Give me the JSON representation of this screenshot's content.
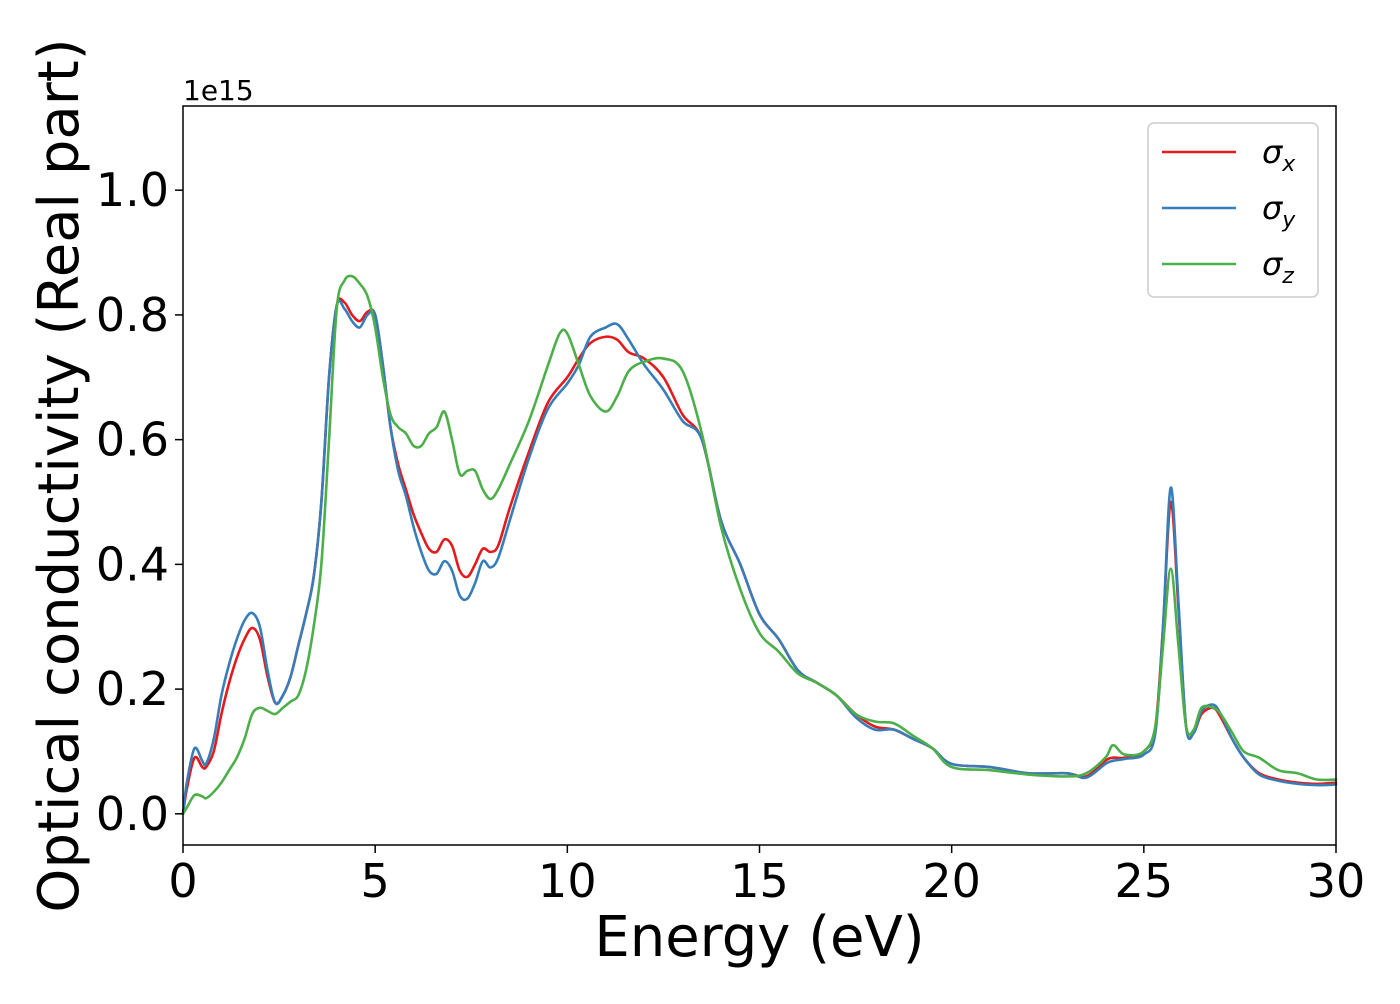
{
  "chart_data": {
    "type": "line",
    "xlabel": "Energy (eV)",
    "ylabel": "Optical conductivity (Real part)",
    "offset_text": "1e15",
    "xlim": [
      0,
      30
    ],
    "ylim": [
      -0.05,
      1.135
    ],
    "xticks": [
      0,
      5,
      10,
      15,
      20,
      25,
      30
    ],
    "xtick_labels": [
      "0",
      "5",
      "10",
      "15",
      "20",
      "25",
      "30"
    ],
    "yticks": [
      0.0,
      0.2,
      0.4,
      0.6,
      0.8,
      1.0
    ],
    "ytick_labels": [
      "0.0",
      "0.2",
      "0.4",
      "0.6",
      "0.8",
      "1.0"
    ],
    "grid": false,
    "legend_position": "top-right",
    "series": [
      {
        "name": "σx",
        "legend_base": "σ",
        "legend_sub": "x",
        "color": "#e41a1c",
        "x": [
          0,
          0.1,
          0.3,
          0.5,
          0.6,
          0.8,
          1.0,
          1.2,
          1.4,
          1.6,
          1.8,
          2.0,
          2.2,
          2.4,
          2.6,
          2.8,
          3.0,
          3.2,
          3.4,
          3.6,
          3.8,
          4.0,
          4.2,
          4.4,
          4.6,
          4.8,
          5.0,
          5.2,
          5.4,
          5.6,
          5.8,
          6.0,
          6.2,
          6.4,
          6.6,
          6.8,
          7.0,
          7.2,
          7.4,
          7.6,
          7.8,
          8.0,
          8.2,
          8.5,
          9.0,
          9.5,
          10.0,
          10.3,
          10.6,
          11.0,
          11.3,
          11.6,
          12.0,
          12.5,
          13.0,
          13.5,
          14.0,
          14.5,
          15.0,
          15.5,
          16.0,
          16.5,
          17.0,
          17.5,
          18.0,
          18.5,
          19.0,
          19.5,
          20.0,
          21.0,
          22.0,
          23.0,
          23.5,
          24.0,
          24.2,
          24.5,
          25.0,
          25.3,
          25.5,
          25.7,
          25.9,
          26.1,
          26.3,
          26.5,
          26.8,
          27.0,
          27.3,
          27.6,
          28.0,
          28.5,
          29.0,
          29.5,
          30.0
        ],
        "y": [
          0.0,
          0.04,
          0.09,
          0.075,
          0.075,
          0.1,
          0.16,
          0.21,
          0.25,
          0.28,
          0.298,
          0.28,
          0.22,
          0.178,
          0.19,
          0.22,
          0.27,
          0.32,
          0.38,
          0.5,
          0.7,
          0.815,
          0.82,
          0.8,
          0.79,
          0.805,
          0.8,
          0.72,
          0.62,
          0.56,
          0.52,
          0.48,
          0.45,
          0.425,
          0.42,
          0.44,
          0.43,
          0.39,
          0.38,
          0.4,
          0.425,
          0.42,
          0.43,
          0.49,
          0.58,
          0.66,
          0.7,
          0.73,
          0.755,
          0.765,
          0.76,
          0.74,
          0.73,
          0.7,
          0.64,
          0.6,
          0.47,
          0.4,
          0.32,
          0.28,
          0.23,
          0.21,
          0.19,
          0.16,
          0.14,
          0.135,
          0.12,
          0.105,
          0.08,
          0.075,
          0.065,
          0.065,
          0.06,
          0.085,
          0.09,
          0.09,
          0.1,
          0.14,
          0.3,
          0.5,
          0.33,
          0.14,
          0.13,
          0.16,
          0.17,
          0.155,
          0.12,
          0.09,
          0.065,
          0.055,
          0.05,
          0.048,
          0.05
        ]
      },
      {
        "name": "σy",
        "legend_base": "σ",
        "legend_sub": "y",
        "color": "#377eb8",
        "x": [
          0,
          0.1,
          0.3,
          0.5,
          0.6,
          0.8,
          1.0,
          1.2,
          1.4,
          1.6,
          1.8,
          2.0,
          2.2,
          2.4,
          2.6,
          2.8,
          3.0,
          3.2,
          3.4,
          3.6,
          3.8,
          4.0,
          4.2,
          4.4,
          4.6,
          4.8,
          5.0,
          5.2,
          5.4,
          5.6,
          5.8,
          6.0,
          6.2,
          6.4,
          6.6,
          6.8,
          7.0,
          7.2,
          7.4,
          7.6,
          7.8,
          8.0,
          8.2,
          8.5,
          9.0,
          9.5,
          10.0,
          10.3,
          10.6,
          11.0,
          11.3,
          11.6,
          12.0,
          12.5,
          13.0,
          13.5,
          14.0,
          14.5,
          15.0,
          15.5,
          16.0,
          16.5,
          17.0,
          17.5,
          18.0,
          18.5,
          19.0,
          19.5,
          20.0,
          21.0,
          22.0,
          23.0,
          23.5,
          24.0,
          24.2,
          24.5,
          25.0,
          25.3,
          25.5,
          25.7,
          25.9,
          26.1,
          26.3,
          26.5,
          26.8,
          27.0,
          27.3,
          27.6,
          28.0,
          28.5,
          29.0,
          29.5,
          30.0
        ],
        "y": [
          0.0,
          0.05,
          0.105,
          0.085,
          0.08,
          0.12,
          0.19,
          0.24,
          0.28,
          0.31,
          0.322,
          0.3,
          0.23,
          0.178,
          0.19,
          0.22,
          0.27,
          0.32,
          0.38,
          0.5,
          0.7,
          0.815,
          0.81,
          0.79,
          0.78,
          0.8,
          0.8,
          0.72,
          0.62,
          0.55,
          0.51,
          0.46,
          0.42,
          0.39,
          0.385,
          0.405,
          0.39,
          0.35,
          0.345,
          0.37,
          0.405,
          0.395,
          0.41,
          0.47,
          0.57,
          0.65,
          0.69,
          0.72,
          0.765,
          0.78,
          0.785,
          0.76,
          0.72,
          0.68,
          0.63,
          0.6,
          0.47,
          0.4,
          0.32,
          0.28,
          0.23,
          0.21,
          0.19,
          0.155,
          0.135,
          0.135,
          0.12,
          0.105,
          0.08,
          0.075,
          0.065,
          0.065,
          0.058,
          0.08,
          0.085,
          0.088,
          0.095,
          0.13,
          0.3,
          0.523,
          0.34,
          0.14,
          0.13,
          0.165,
          0.175,
          0.16,
          0.12,
          0.09,
          0.063,
          0.053,
          0.048,
          0.046,
          0.047
        ]
      },
      {
        "name": "σz",
        "legend_base": "σ",
        "legend_sub": "z",
        "color": "#4daf4a",
        "x": [
          0,
          0.1,
          0.3,
          0.5,
          0.6,
          0.8,
          1.0,
          1.2,
          1.4,
          1.6,
          1.8,
          2.0,
          2.2,
          2.4,
          2.6,
          2.8,
          3.0,
          3.2,
          3.4,
          3.6,
          3.8,
          4.0,
          4.2,
          4.4,
          4.6,
          4.8,
          5.0,
          5.2,
          5.4,
          5.6,
          5.8,
          6.0,
          6.2,
          6.4,
          6.6,
          6.8,
          7.0,
          7.2,
          7.4,
          7.6,
          7.8,
          8.0,
          8.2,
          8.5,
          9.0,
          9.5,
          9.8,
          10.0,
          10.3,
          10.6,
          11.0,
          11.3,
          11.6,
          12.0,
          12.5,
          13.0,
          13.5,
          14.0,
          14.5,
          15.0,
          15.5,
          16.0,
          16.5,
          17.0,
          17.5,
          18.0,
          18.5,
          19.0,
          19.5,
          20.0,
          21.0,
          22.0,
          23.0,
          23.5,
          24.0,
          24.2,
          24.5,
          25.0,
          25.3,
          25.5,
          25.7,
          25.9,
          26.1,
          26.3,
          26.5,
          26.8,
          27.0,
          27.3,
          27.6,
          28.0,
          28.5,
          29.0,
          29.5,
          30.0
        ],
        "y": [
          0.0,
          0.01,
          0.03,
          0.028,
          0.025,
          0.035,
          0.05,
          0.07,
          0.09,
          0.12,
          0.16,
          0.17,
          0.165,
          0.16,
          0.17,
          0.18,
          0.19,
          0.23,
          0.3,
          0.4,
          0.6,
          0.81,
          0.855,
          0.862,
          0.85,
          0.83,
          0.78,
          0.7,
          0.64,
          0.62,
          0.61,
          0.59,
          0.59,
          0.61,
          0.62,
          0.645,
          0.6,
          0.545,
          0.55,
          0.55,
          0.52,
          0.505,
          0.52,
          0.56,
          0.63,
          0.72,
          0.77,
          0.77,
          0.72,
          0.67,
          0.645,
          0.67,
          0.71,
          0.725,
          0.73,
          0.71,
          0.61,
          0.46,
          0.36,
          0.29,
          0.26,
          0.225,
          0.21,
          0.19,
          0.16,
          0.148,
          0.145,
          0.125,
          0.105,
          0.075,
          0.07,
          0.063,
          0.06,
          0.065,
          0.09,
          0.11,
          0.095,
          0.1,
          0.14,
          0.27,
          0.393,
          0.27,
          0.14,
          0.135,
          0.17,
          0.17,
          0.16,
          0.13,
          0.1,
          0.09,
          0.07,
          0.065,
          0.055,
          0.055
        ]
      }
    ]
  }
}
